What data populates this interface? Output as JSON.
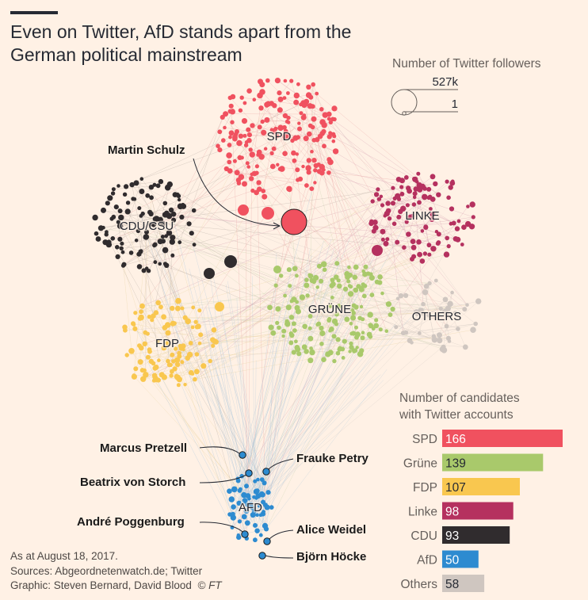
{
  "title": "Even on Twitter, AfD stands apart from the German political mainstream",
  "footer": {
    "date": "As at August 18, 2017.",
    "sources": "Sources: Abgeordnetenwatch.de; Twitter",
    "graphic": "Graphic: Steven Bernard, David Blood",
    "ft": "© FT"
  },
  "colors": {
    "background": "#FFF1E5",
    "SPD": "#F0515F",
    "Grüne": "#A9C96B",
    "FDP": "#F9C74F",
    "Linke": "#B5315F",
    "CDU": "#302C2E",
    "AfD": "#2D8BD0",
    "Others": "#CFC6C0"
  },
  "chart_data": [
    {
      "type": "network",
      "clusters": [
        {
          "name": "SPD",
          "cx": 352,
          "cy": 172
        },
        {
          "name": "CDU/CSU",
          "cx": 185,
          "cy": 285
        },
        {
          "name": "LINKE",
          "cx": 533,
          "cy": 272
        },
        {
          "name": "FDP",
          "cx": 211,
          "cy": 433
        },
        {
          "name": "GRÜNE",
          "cx": 416,
          "cy": 390
        },
        {
          "name": "OTHERS",
          "cx": 551,
          "cy": 399
        },
        {
          "name": "AFD",
          "cx": 316,
          "cy": 640
        }
      ],
      "annotations": [
        {
          "name": "Martin Schulz",
          "party": "SPD"
        },
        {
          "name": "Marcus Pretzell",
          "party": "AfD"
        },
        {
          "name": "Frauke Petry",
          "party": "AfD"
        },
        {
          "name": "Beatrix von Storch",
          "party": "AfD"
        },
        {
          "name": "André Poggenburg",
          "party": "AfD"
        },
        {
          "name": "Alice Weidel",
          "party": "AfD"
        },
        {
          "name": "Björn Höcke",
          "party": "AfD"
        }
      ],
      "size_legend": {
        "title": "Number of Twitter followers",
        "max_label": "527k",
        "min_label": "1",
        "max_value": 527000,
        "min_value": 1
      }
    },
    {
      "type": "bar",
      "title": "Number of candidates with Twitter accounts",
      "categories": [
        "SPD",
        "Grüne",
        "FDP",
        "Linke",
        "CDU",
        "AfD",
        "Others"
      ],
      "values": [
        166,
        139,
        107,
        98,
        93,
        50,
        58
      ],
      "xlim": [
        0,
        166
      ]
    }
  ]
}
